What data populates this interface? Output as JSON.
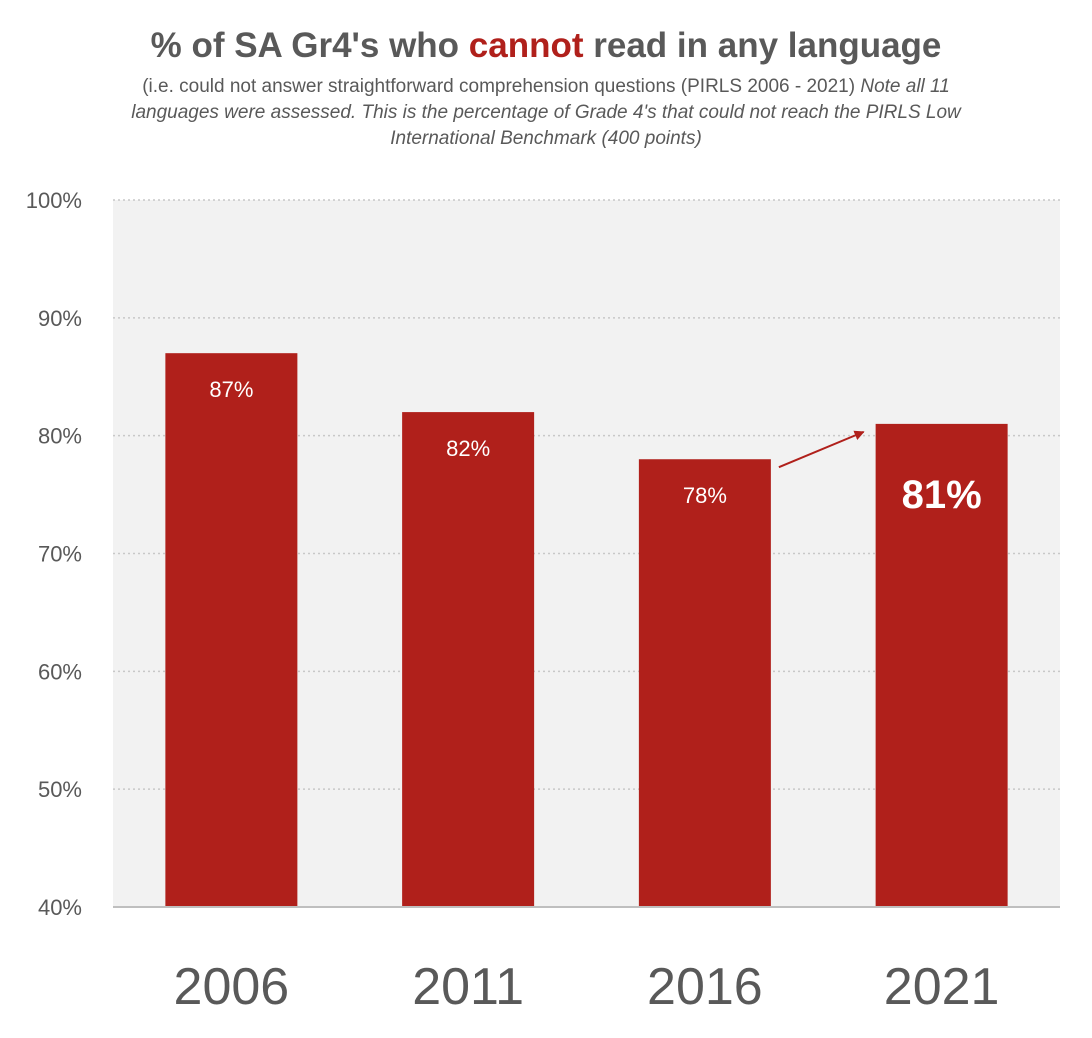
{
  "chart_data": {
    "type": "bar",
    "title_parts": {
      "before": "% of SA Gr4's who ",
      "emphasis": "cannot",
      "after": " read in any language"
    },
    "subtitle": "(i.e. could not answer straightforward comprehension questions (PIRLS 2006 - 2021)",
    "subtitle_note": "Note all 11 languages were assessed. This is the percentage of Grade 4's that could not reach the PIRLS Low International Benchmark (400 points)",
    "categories": [
      "2006",
      "2011",
      "2016",
      "2021"
    ],
    "values": [
      87,
      82,
      78,
      81
    ],
    "data_labels": [
      "87%",
      "82%",
      "78%",
      "81%"
    ],
    "highlight_index": 3,
    "ylim": [
      40,
      100
    ],
    "yticks": [
      40,
      50,
      60,
      70,
      80,
      90,
      100
    ],
    "ytick_labels": [
      "40%",
      "50%",
      "60%",
      "70%",
      "80%",
      "90%",
      "100%"
    ],
    "xlabel": "",
    "ylabel": "",
    "grid": true,
    "annotation": "arrow from 2016 bar to 2021 bar",
    "colors": {
      "bar": "#b0201b",
      "plot_bg": "#f2f2f2",
      "text": "#595959",
      "grid": "#c8c8c8"
    }
  }
}
